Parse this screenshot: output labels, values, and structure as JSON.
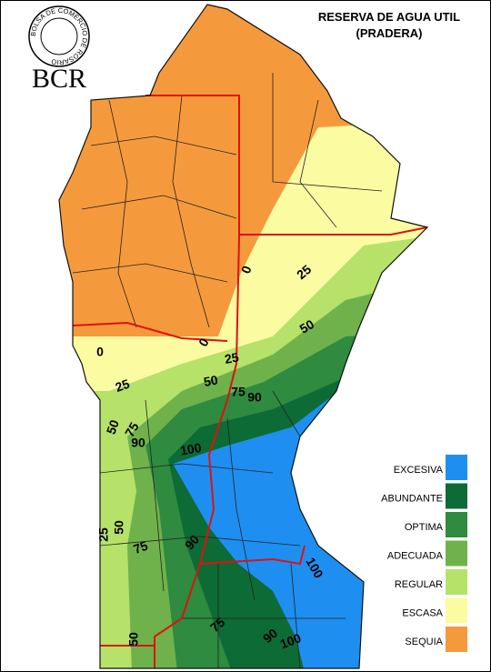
{
  "header": {
    "logo_ring": "BOLSA DE COMERCIO DE ROSARIO",
    "logo": "BCR",
    "title": [
      "RESERVA DE AGUA UTIL",
      "(PRADERA)"
    ]
  },
  "legend": [
    {
      "label": "EXCESIVA",
      "color": "#1e8ff0"
    },
    {
      "label": "ABUNDANTE",
      "color": "#0d6b35"
    },
    {
      "label": "OPTIMA",
      "color": "#2e8b3f"
    },
    {
      "label": "ADECUADA",
      "color": "#6fb24c"
    },
    {
      "label": "REGULAR",
      "color": "#b6e26a"
    },
    {
      "label": "ESCASA",
      "color": "#fbfba2"
    },
    {
      "label": "SEQUIA",
      "color": "#f59a3c"
    }
  ],
  "contour_labels": [
    0,
    25,
    50,
    0,
    0,
    25,
    25,
    50,
    75,
    90,
    50,
    75,
    90,
    100,
    25,
    50,
    75,
    90,
    100,
    75,
    90,
    100,
    50
  ]
}
